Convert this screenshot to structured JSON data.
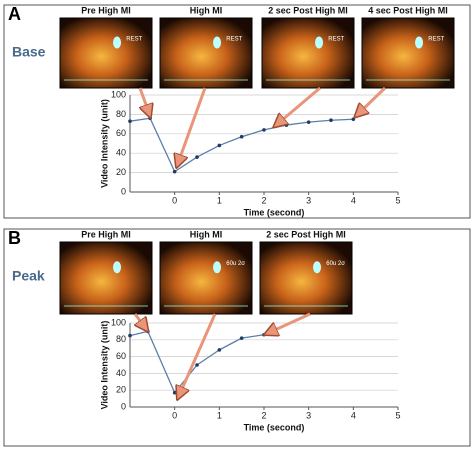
{
  "chart_data": [
    {
      "type": "line",
      "panel": "A",
      "label": "Base",
      "images": [
        "Pre High MI",
        "High MI",
        "2 sec Post High MI",
        "4 sec Post High MI"
      ],
      "image_overlays": [
        "REST",
        "REST",
        "REST",
        "REST"
      ],
      "x_label": "Time (second)",
      "y_label": "Video Intensity (unit)",
      "x": [
        -1,
        -0.55,
        0,
        0.5,
        1,
        1.5,
        2,
        2.5,
        3,
        3.5,
        4
      ],
      "values": [
        73,
        76,
        21,
        36,
        48,
        57,
        64,
        69,
        72,
        74,
        75
      ],
      "color": "#5b7fa6",
      "marker_color": "#1f3b66",
      "xlim": [
        -1,
        5
      ],
      "xticks": [
        0,
        1,
        2,
        3,
        4,
        5
      ],
      "ylim": [
        0,
        100
      ],
      "yticks": [
        0,
        20,
        40,
        60,
        80,
        100
      ],
      "grid": true
    },
    {
      "type": "line",
      "panel": "B",
      "label": "Peak",
      "images": [
        "Pre High MI",
        "High MI",
        "2 sec Post High MI"
      ],
      "image_overlays": [
        null,
        "60u 2σ",
        "60u 2σ"
      ],
      "x_label": "Time (second)",
      "y_label": "Video Intensity (unit)",
      "x": [
        -1,
        -0.6,
        0,
        0.5,
        1,
        1.5,
        2
      ],
      "values": [
        85,
        90,
        17,
        50,
        68,
        82,
        86
      ],
      "color": "#5b7fa6",
      "marker_color": "#1f3b66",
      "xlim": [
        -1,
        5
      ],
      "xticks": [
        0,
        1,
        2,
        3,
        4,
        5
      ],
      "ylim": [
        0,
        100
      ],
      "yticks": [
        0,
        20,
        40,
        60,
        80,
        100
      ],
      "grid": true
    }
  ]
}
